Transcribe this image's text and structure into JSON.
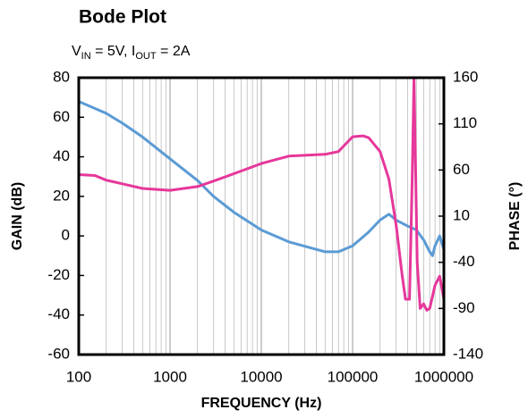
{
  "chart_data": {
    "type": "line",
    "title": "Bode Plot",
    "subtitle": [
      "V",
      "IN",
      " = 5V, I",
      "OUT",
      " = 2A"
    ],
    "xlabel": "FREQUENCY (Hz)",
    "ylabel": "GAIN (dB)",
    "y2label": "PHASE (°)",
    "xscale": "log",
    "grid": true,
    "minor_grid": true,
    "xlim": [
      100,
      1000000
    ],
    "xticks": [
      100,
      1000,
      10000,
      100000,
      1000000
    ],
    "ylim": [
      -60,
      80
    ],
    "yticks": [
      -60,
      -40,
      -20,
      0,
      20,
      40,
      60,
      80
    ],
    "y2lim": [
      -140,
      160
    ],
    "y2ticks": [
      -140,
      -90,
      -40,
      10,
      60,
      110,
      160
    ],
    "series": [
      {
        "name": "Gain",
        "color": "#5b9bd5",
        "x": [
          100,
          200,
          300,
          500,
          1000,
          2000,
          3000,
          5000,
          10000,
          20000,
          50000,
          70000,
          100000,
          150000,
          200000,
          250000,
          300000,
          400000,
          450000,
          500000,
          600000,
          700000,
          750000,
          800000,
          900000,
          1000000
        ],
        "values": [
          68,
          62,
          57,
          50,
          39,
          28,
          20,
          12,
          3,
          -3,
          -8,
          -8,
          -5,
          2,
          8,
          11,
          8,
          5,
          4,
          3,
          -2,
          -8,
          -10,
          -5,
          0,
          -7
        ]
      },
      {
        "name": "Phase",
        "color": "#e6379a",
        "axis": "y2",
        "x": [
          100,
          150,
          200,
          300,
          500,
          1000,
          2000,
          3000,
          5000,
          10000,
          20000,
          50000,
          70000,
          100000,
          130000,
          150000,
          200000,
          250000,
          300000,
          350000,
          380000,
          420000,
          450000,
          470000,
          490000,
          510000,
          550000,
          600000,
          650000,
          700000,
          800000,
          900000,
          1000000
        ],
        "values": [
          55,
          54,
          49,
          45,
          40,
          38,
          42,
          48,
          56,
          67,
          75,
          77,
          80,
          96,
          97,
          95,
          80,
          50,
          0,
          -55,
          -80,
          -80,
          50,
          160,
          60,
          -40,
          -90,
          -85,
          -92,
          -90,
          -65,
          -55,
          -80
        ]
      }
    ]
  }
}
